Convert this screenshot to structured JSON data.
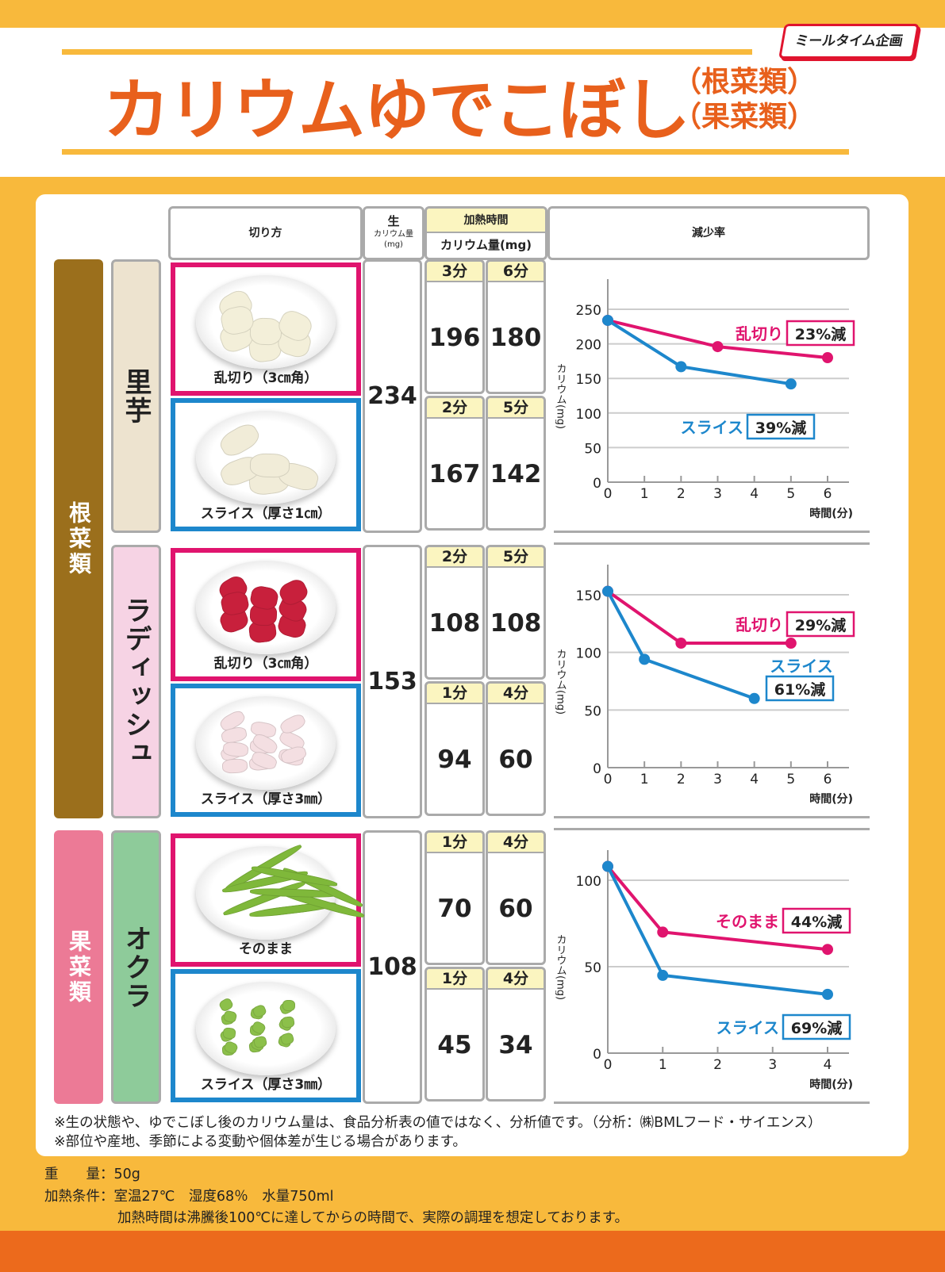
{
  "header": {
    "title": "カリウムゆでこぼし",
    "subtitle_1": "（根菜類）",
    "subtitle_2": "（果菜類）",
    "logo": "ミールタイム企画"
  },
  "colors": {
    "title": "#e8601c",
    "ranngiri": "#e0146e",
    "slice": "#1d87cc",
    "root_category": "#9b6f1c",
    "fruit_category": "#ec7a96"
  },
  "table_header": {
    "cut": "切り方",
    "raw_1": "生",
    "raw_2": "カリウム量",
    "raw_3": "(mg)",
    "heating_time": "加熱時間",
    "potassium": "カリウム量(mg)",
    "reduction": "減少率"
  },
  "categories": [
    {
      "label": "根菜類",
      "color": "#9b6f1c"
    },
    {
      "label": "果菜類",
      "color": "#ec7a96"
    }
  ],
  "groups": [
    {
      "vegetable": "里芋",
      "veg_color": "#ede3cf",
      "raw": "234",
      "rows": [
        {
          "cut": "乱切り（3㎝角）",
          "times": [
            "3分",
            "6分"
          ],
          "values": [
            "196",
            "180"
          ]
        },
        {
          "cut": "スライス（厚さ1㎝）",
          "times": [
            "2分",
            "5分"
          ],
          "values": [
            "167",
            "142"
          ]
        }
      ]
    },
    {
      "vegetable": "ラディッシュ",
      "veg_color": "#f6d3e4",
      "raw": "153",
      "rows": [
        {
          "cut": "乱切り（3㎝角）",
          "times": [
            "2分",
            "5分"
          ],
          "values": [
            "108",
            "108"
          ]
        },
        {
          "cut": "スライス（厚さ3㎜）",
          "times": [
            "1分",
            "4分"
          ],
          "values": [
            "94",
            "60"
          ]
        }
      ]
    },
    {
      "vegetable": "オクラ",
      "veg_color": "#8ecb9a",
      "raw": "108",
      "rows": [
        {
          "cut": "そのまま",
          "times": [
            "1分",
            "4分"
          ],
          "values": [
            "70",
            "60"
          ]
        },
        {
          "cut": "スライス（厚さ3㎜）",
          "times": [
            "1分",
            "4分"
          ],
          "values": [
            "45",
            "34"
          ]
        }
      ]
    }
  ],
  "chart_data": [
    {
      "type": "line",
      "ylabel": "カリウム(mg)",
      "xlabel": "時間(分)",
      "ylim": [
        0,
        250
      ],
      "yticks": [
        0,
        50,
        100,
        150,
        200,
        250
      ],
      "xlim": [
        0,
        6
      ],
      "xticks": [
        0,
        1,
        2,
        3,
        4,
        5,
        6
      ],
      "grid": true,
      "series": [
        {
          "name": "乱切り",
          "reduction": "23%減",
          "color": "#e0146e",
          "x": [
            0,
            3,
            6
          ],
          "y": [
            234,
            196,
            180
          ]
        },
        {
          "name": "スライス",
          "reduction": "39%減",
          "color": "#1d87cc",
          "x": [
            0,
            2,
            5
          ],
          "y": [
            234,
            167,
            142
          ]
        }
      ]
    },
    {
      "type": "line",
      "ylabel": "カリウム(mg)",
      "xlabel": "時間(分)",
      "ylim": [
        0,
        150
      ],
      "yticks": [
        0,
        50,
        100,
        150
      ],
      "xlim": [
        0,
        6
      ],
      "xticks": [
        0,
        1,
        2,
        3,
        4,
        5,
        6
      ],
      "grid": true,
      "series": [
        {
          "name": "乱切り",
          "reduction": "29%減",
          "color": "#e0146e",
          "x": [
            0,
            2,
            5
          ],
          "y": [
            153,
            108,
            108
          ]
        },
        {
          "name": "スライス",
          "reduction": "61%減",
          "color": "#1d87cc",
          "x": [
            0,
            1,
            4
          ],
          "y": [
            153,
            94,
            60
          ]
        }
      ]
    },
    {
      "type": "line",
      "ylabel": "カリウム(mg)",
      "xlabel": "時間(分)",
      "ylim": [
        0,
        100
      ],
      "yticks": [
        0,
        50,
        100
      ],
      "xlim": [
        0,
        4
      ],
      "xticks": [
        0,
        1,
        2,
        3,
        4
      ],
      "grid": true,
      "series": [
        {
          "name": "そのまま",
          "reduction": "44%減",
          "color": "#e0146e",
          "x": [
            0,
            1,
            4
          ],
          "y": [
            108,
            70,
            60
          ]
        },
        {
          "name": "スライス",
          "reduction": "69%減",
          "color": "#1d87cc",
          "x": [
            0,
            1,
            4
          ],
          "y": [
            108,
            45,
            34
          ]
        }
      ]
    }
  ],
  "notes": [
    "※生の状態や、ゆでこぼし後のカリウム量は、食品分析表の値ではなく、分析値です。（分析：㈱BMLフード・サイエンス）",
    "※部位や産地、季節による変動や個体差が生じる場合があります。"
  ],
  "conditions": {
    "weight": "重　　量：50g",
    "heating": "加熱条件：室温27℃　湿度68％　水量750ml",
    "heating_note": "加熱時間は沸騰後100℃に達してからの時間で、実際の調理を想定しております。"
  }
}
